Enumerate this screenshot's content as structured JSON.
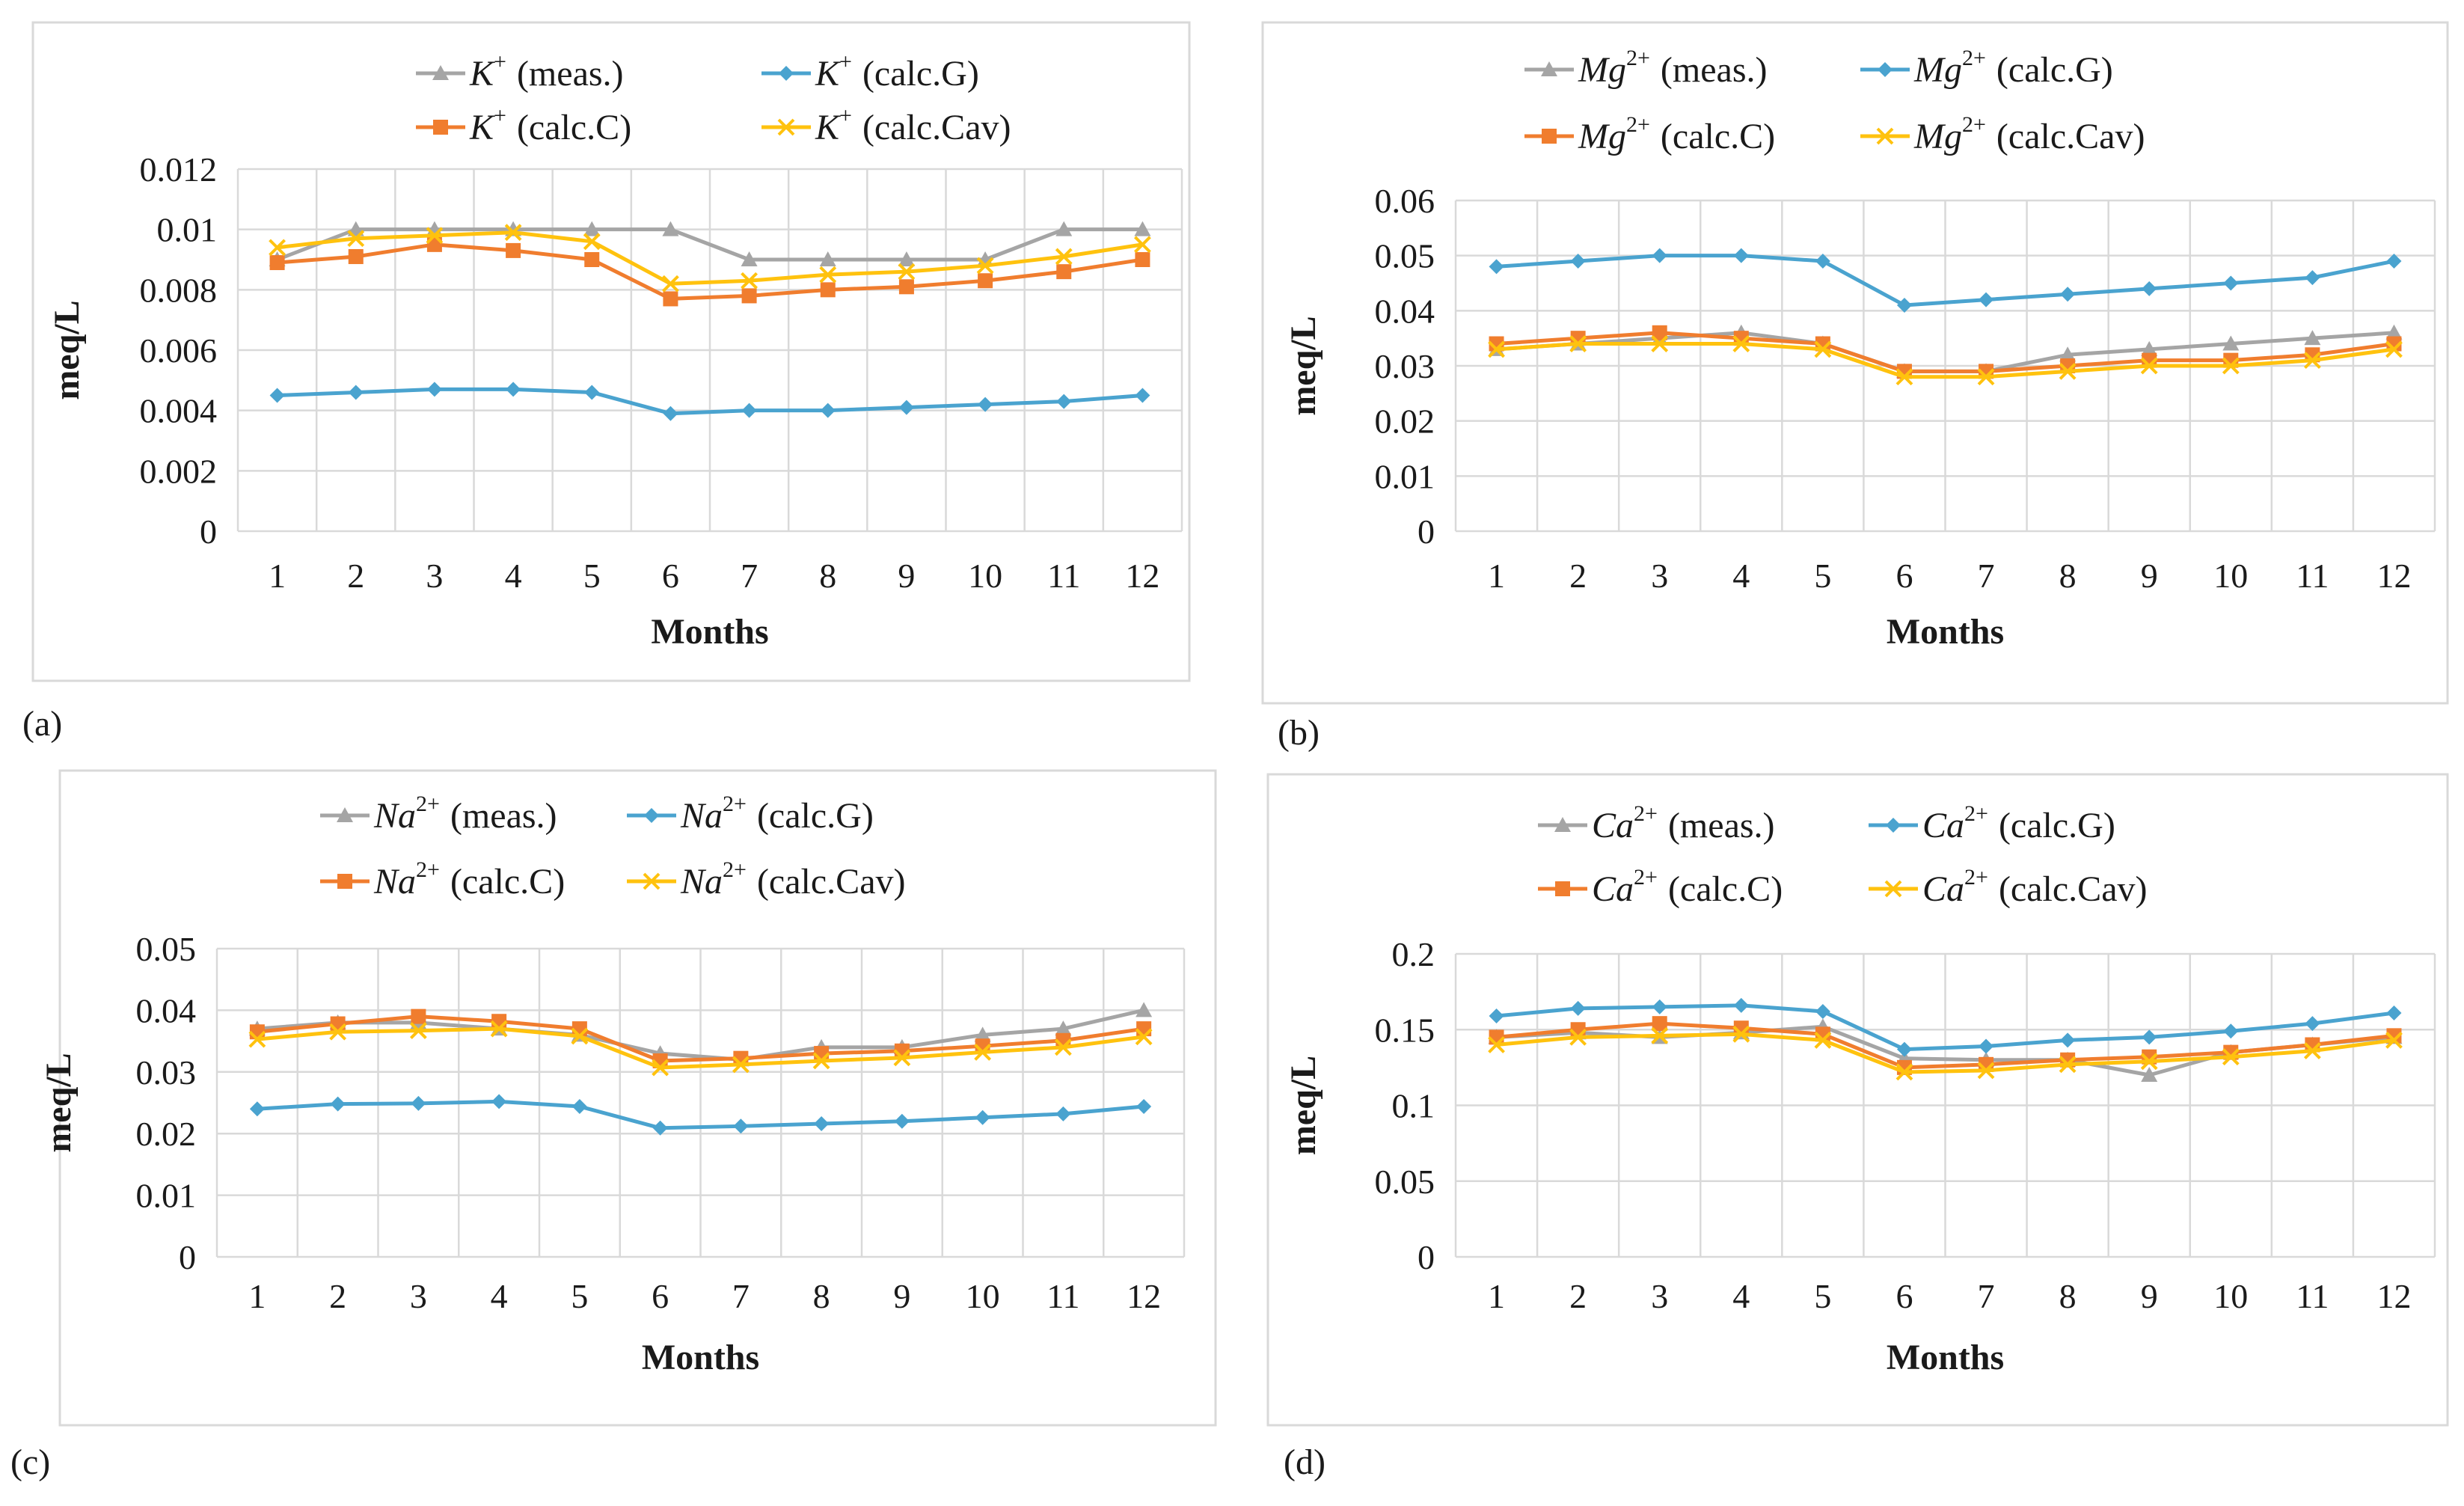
{
  "chart_data": [
    {
      "type": "line",
      "panel_label": "(a)",
      "ion": "K",
      "charge": "+",
      "xlabel": "Months",
      "ylabel": "meq/L",
      "ylim": [
        0,
        0.012
      ],
      "yticks": [
        "0",
        "0.002",
        "0.004",
        "0.006",
        "0.008",
        "0.01",
        "0.012"
      ],
      "categories": [
        "1",
        "2",
        "3",
        "4",
        "5",
        "6",
        "7",
        "8",
        "9",
        "10",
        "11",
        "12"
      ],
      "series": [
        {
          "name": "(meas.)",
          "color": "#a5a5a5",
          "marker": "triangle",
          "values": [
            0.009,
            0.01,
            0.01,
            0.01,
            0.01,
            0.01,
            0.009,
            0.009,
            0.009,
            0.009,
            0.01,
            0.01
          ]
        },
        {
          "name": "(calc.G)",
          "color": "#4aa3cf",
          "marker": "diamond",
          "values": [
            0.0045,
            0.0046,
            0.0047,
            0.0047,
            0.0046,
            0.0039,
            0.004,
            0.004,
            0.0041,
            0.0042,
            0.0043,
            0.0045
          ]
        },
        {
          "name": "(calc.C)",
          "color": "#f07d2e",
          "marker": "square",
          "values": [
            0.0089,
            0.0091,
            0.0095,
            0.0093,
            0.009,
            0.0077,
            0.0078,
            0.008,
            0.0081,
            0.0083,
            0.0086,
            0.009
          ]
        },
        {
          "name": "(calc.Cav)",
          "color": "#ffc20e",
          "marker": "x",
          "values": [
            0.0094,
            0.0097,
            0.0098,
            0.0099,
            0.0096,
            0.0082,
            0.0083,
            0.0085,
            0.0086,
            0.0088,
            0.0091,
            0.0095
          ]
        }
      ]
    },
    {
      "type": "line",
      "panel_label": "(b)",
      "ion": "Mg",
      "charge": "2+",
      "xlabel": "Months",
      "ylabel": "meq/L",
      "ylim": [
        0,
        0.06
      ],
      "yticks": [
        "0",
        "0.01",
        "0.02",
        "0.03",
        "0.04",
        "0.05",
        "0.06"
      ],
      "categories": [
        "1",
        "2",
        "3",
        "4",
        "5",
        "6",
        "7",
        "8",
        "9",
        "10",
        "11",
        "12"
      ],
      "series": [
        {
          "name": "(meas.)",
          "color": "#a5a5a5",
          "marker": "triangle",
          "values": [
            0.033,
            0.034,
            0.035,
            0.036,
            0.034,
            0.029,
            0.029,
            0.032,
            0.033,
            0.034,
            0.035,
            0.036
          ]
        },
        {
          "name": "(calc.G)",
          "color": "#4aa3cf",
          "marker": "diamond",
          "values": [
            0.048,
            0.049,
            0.05,
            0.05,
            0.049,
            0.041,
            0.042,
            0.043,
            0.044,
            0.045,
            0.046,
            0.049
          ]
        },
        {
          "name": "(calc.C)",
          "color": "#f07d2e",
          "marker": "square",
          "values": [
            0.034,
            0.035,
            0.036,
            0.035,
            0.034,
            0.029,
            0.029,
            0.03,
            0.031,
            0.031,
            0.032,
            0.034
          ]
        },
        {
          "name": "(calc.Cav)",
          "color": "#ffc20e",
          "marker": "x",
          "values": [
            0.033,
            0.034,
            0.034,
            0.034,
            0.033,
            0.028,
            0.028,
            0.029,
            0.03,
            0.03,
            0.031,
            0.033
          ]
        }
      ]
    },
    {
      "type": "line",
      "panel_label": "(c)",
      "ion": "Na",
      "charge": "2+",
      "xlabel": "Months",
      "ylabel": "meq/L",
      "ylim": [
        0,
        0.05
      ],
      "yticks": [
        "0",
        "0.01",
        "0.02",
        "0.03",
        "0.04",
        "0.05"
      ],
      "categories": [
        "1",
        "2",
        "3",
        "4",
        "5",
        "6",
        "7",
        "8",
        "9",
        "10",
        "11",
        "12"
      ],
      "series": [
        {
          "name": "(meas.)",
          "color": "#a5a5a5",
          "marker": "triangle",
          "values": [
            0.037,
            0.038,
            0.038,
            0.037,
            0.036,
            0.033,
            0.032,
            0.034,
            0.034,
            0.036,
            0.037,
            0.04
          ]
        },
        {
          "name": "(calc.G)",
          "color": "#4aa3cf",
          "marker": "diamond",
          "values": [
            0.024,
            0.0248,
            0.0249,
            0.0252,
            0.0244,
            0.0209,
            0.0212,
            0.0216,
            0.022,
            0.0226,
            0.0232,
            0.0244
          ]
        },
        {
          "name": "(calc.C)",
          "color": "#f07d2e",
          "marker": "square",
          "values": [
            0.0365,
            0.0378,
            0.039,
            0.0382,
            0.037,
            0.0318,
            0.0322,
            0.033,
            0.0334,
            0.0342,
            0.0351,
            0.037
          ]
        },
        {
          "name": "(calc.Cav)",
          "color": "#ffc20e",
          "marker": "x",
          "values": [
            0.0353,
            0.0365,
            0.0367,
            0.037,
            0.0358,
            0.0307,
            0.0312,
            0.0318,
            0.0323,
            0.0332,
            0.034,
            0.0357
          ]
        }
      ]
    },
    {
      "type": "line",
      "panel_label": "(d)",
      "ion": "Ca",
      "charge": "2+",
      "xlabel": "Months",
      "ylabel": "meq/L",
      "ylim": [
        0,
        0.2
      ],
      "yticks": [
        "0",
        "0.05",
        "0.1",
        "0.15",
        "0.2"
      ],
      "categories": [
        "1",
        "2",
        "3",
        "4",
        "5",
        "6",
        "7",
        "8",
        "9",
        "10",
        "11",
        "12"
      ],
      "series": [
        {
          "name": "(meas.)",
          "color": "#a5a5a5",
          "marker": "triangle",
          "values": [
            0.145,
            0.148,
            0.145,
            0.148,
            0.152,
            0.131,
            0.13,
            0.13,
            0.12,
            0.135,
            0.14,
            0.145
          ]
        },
        {
          "name": "(calc.G)",
          "color": "#4aa3cf",
          "marker": "diamond",
          "values": [
            0.159,
            0.164,
            0.165,
            0.166,
            0.162,
            0.137,
            0.139,
            0.143,
            0.145,
            0.149,
            0.154,
            0.161
          ]
        },
        {
          "name": "(calc.C)",
          "color": "#f07d2e",
          "marker": "square",
          "values": [
            0.145,
            0.15,
            0.154,
            0.151,
            0.147,
            0.125,
            0.127,
            0.13,
            0.132,
            0.135,
            0.14,
            0.146
          ]
        },
        {
          "name": "(calc.Cav)",
          "color": "#ffc20e",
          "marker": "x",
          "values": [
            0.14,
            0.145,
            0.146,
            0.147,
            0.143,
            0.122,
            0.123,
            0.127,
            0.129,
            0.132,
            0.136,
            0.143
          ]
        }
      ]
    }
  ]
}
